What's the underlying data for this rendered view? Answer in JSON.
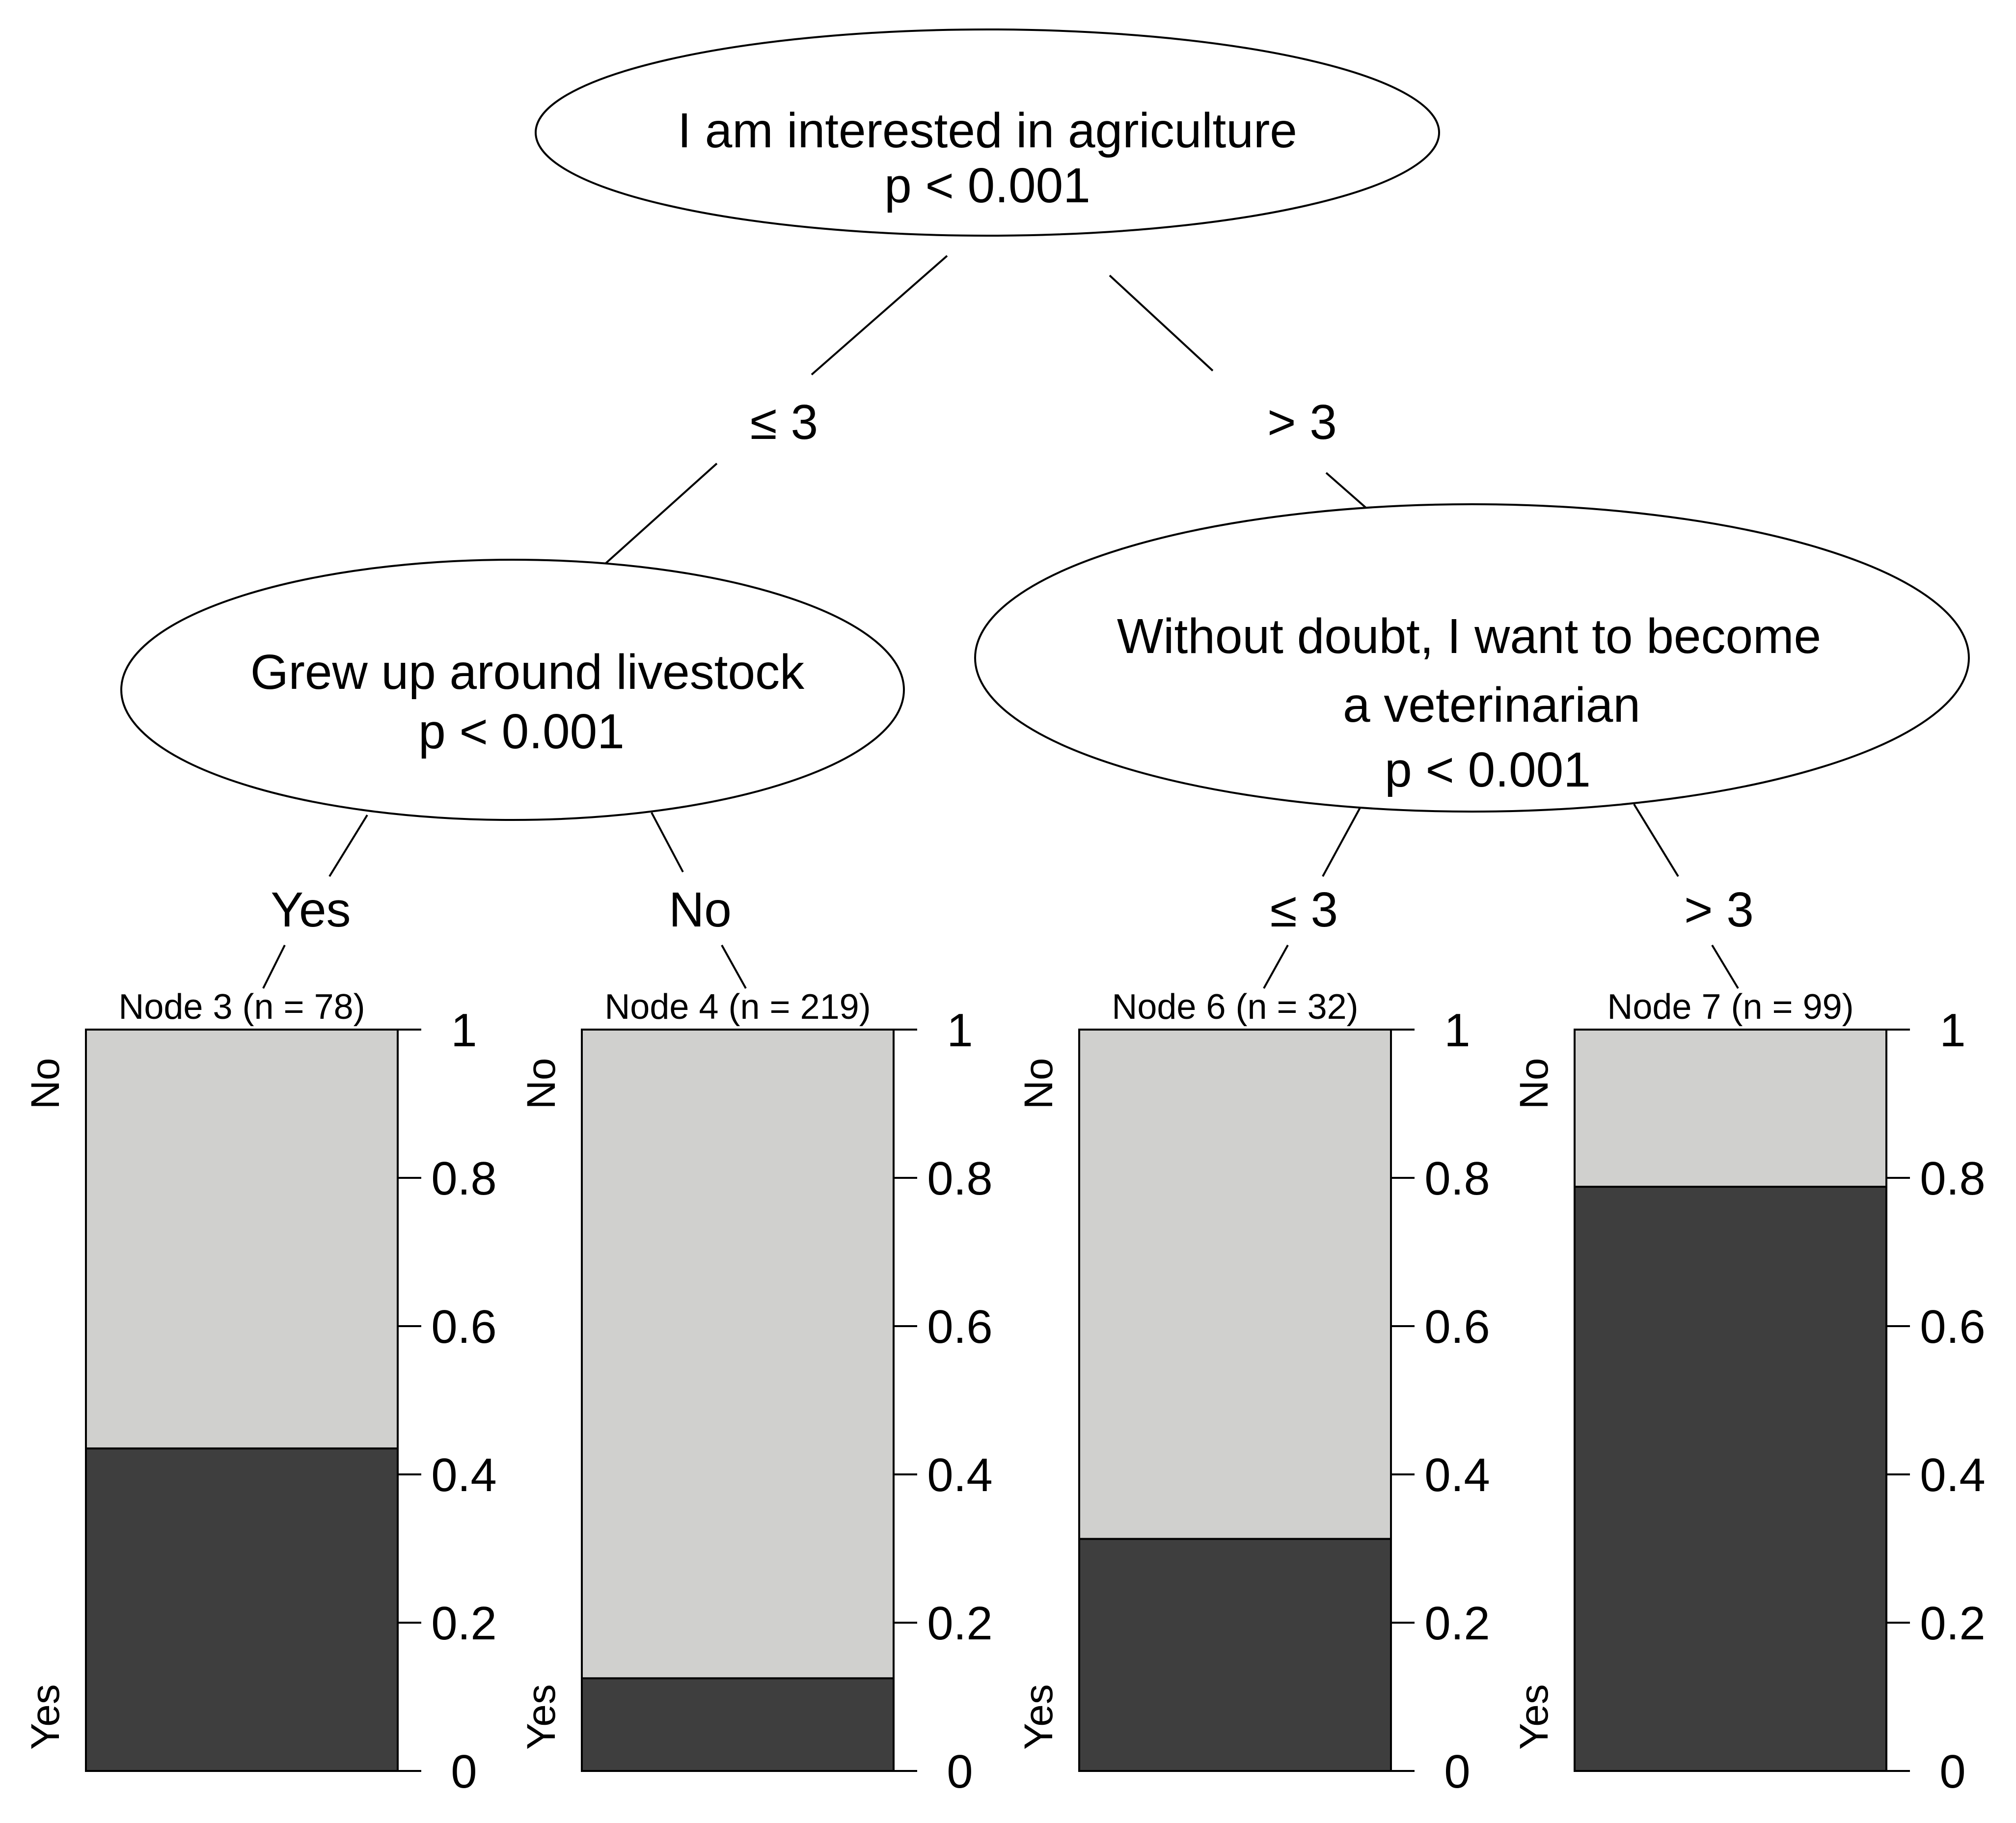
{
  "splits": [
    {
      "id": "root",
      "lines": [
        "I am interested in agriculture",
        "p < 0.001"
      ]
    },
    {
      "id": "left",
      "lines": [
        "Grew up around livestock",
        "p < 0.001"
      ]
    },
    {
      "id": "right",
      "lines": [
        "Without doubt, I want to become",
        "a veterinarian",
        "p < 0.001"
      ]
    }
  ],
  "edge_labels": {
    "root_left": "≤ 3",
    "root_right": "> 3",
    "left_node3": "Yes",
    "left_node4": "No",
    "right_node6": "≤ 3",
    "right_node7": "> 3"
  },
  "chart_data": {
    "type": "bar",
    "categories": [
      "Node 3 (n = 78)",
      "Node 4 (n = 219)",
      "Node 6 (n = 32)",
      "Node 7 (n = 99)"
    ],
    "series": [
      {
        "name": "Yes",
        "values": [
          0.435,
          0.125,
          0.313,
          0.788
        ]
      },
      {
        "name": "No",
        "values": [
          0.565,
          0.875,
          0.687,
          0.212
        ]
      }
    ],
    "ylim": [
      0,
      1
    ],
    "yticks": [
      "0",
      "0.2",
      "0.4",
      "0.6",
      "0.8",
      "1"
    ],
    "class_labels": {
      "top": "No",
      "bottom": "Yes"
    },
    "colors": {
      "Yes": "#3e3e3e",
      "No": "#d0d0ce"
    }
  }
}
